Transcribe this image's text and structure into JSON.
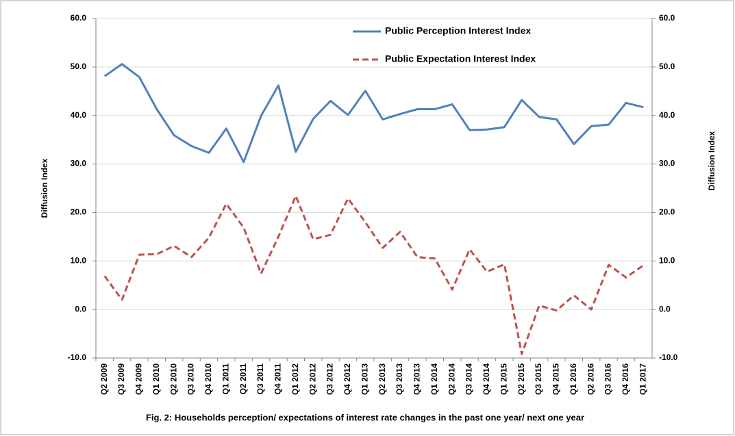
{
  "chart_data": {
    "type": "line",
    "title": "Fig. 2:  Households  perception/ expectations of interest rate changes in the past one year/ next one year",
    "ylabel": "Diffusion Index",
    "y2label": "Diffusion Index",
    "categories": [
      "Q2 2009",
      "Q3 2009",
      "Q4 2009",
      "Q1 2010",
      "Q2 2010",
      "Q3 2010",
      "Q4 2010",
      "Q1 2011",
      "Q2 2011",
      "Q3 2011",
      "Q4 2011",
      "Q1 2012",
      "Q2 2012",
      "Q3 2012",
      "Q4 2012",
      "Q1 2013",
      "Q2 2013",
      "Q3 2013",
      "Q4 2013",
      "Q1 2014",
      "Q2 2014",
      "Q3 2014",
      "Q4 2014",
      "Q1 2015",
      "Q2 2015",
      "Q3 2015",
      "Q4 2015",
      "Q1 2016",
      "Q2 2016",
      "Q3 2016",
      "Q4 2016",
      "Q1 2017"
    ],
    "series": [
      {
        "name": "Public Perception Interest Index",
        "color": "#4f81bd",
        "dash": false,
        "values": [
          48.1,
          50.6,
          47.9,
          41.3,
          35.9,
          33.7,
          32.3,
          37.3,
          30.4,
          39.9,
          46.2,
          32.5,
          39.3,
          43.0,
          40.1,
          45.1,
          39.2,
          40.3,
          41.3,
          41.3,
          42.3,
          37.0,
          37.1,
          37.6,
          43.2,
          39.7,
          39.2,
          34.1,
          37.8,
          38.1,
          42.6,
          41.7
        ]
      },
      {
        "name": "Public Expectation Interest Index",
        "color": "#c0504d",
        "dash": true,
        "values": [
          6.9,
          2.0,
          11.3,
          11.4,
          13.1,
          10.8,
          14.8,
          21.8,
          16.9,
          7.4,
          15.0,
          23.4,
          14.5,
          15.4,
          22.9,
          18.0,
          12.7,
          16.0,
          10.8,
          10.5,
          4.1,
          12.4,
          7.8,
          9.3,
          -9.2,
          0.8,
          -0.2,
          2.9,
          0.0,
          9.2,
          6.6,
          9.1
        ]
      }
    ],
    "ylim": [
      -10,
      60
    ],
    "yticks": [
      {
        "value": -10,
        "label": "-10.0"
      },
      {
        "value": 0,
        "label": "0.0"
      },
      {
        "value": 10,
        "label": "10.0"
      },
      {
        "value": 20,
        "label": "20.0"
      },
      {
        "value": 30,
        "label": "30.0"
      },
      {
        "value": 40,
        "label": "40.0"
      },
      {
        "value": 50,
        "label": "50.0"
      },
      {
        "value": 60,
        "label": "60.0"
      }
    ],
    "y2lim": [
      -10,
      60
    ],
    "y2ticks": [
      {
        "value": -10,
        "label": "-10.0"
      },
      {
        "value": 0,
        "label": "0.0"
      },
      {
        "value": 10,
        "label": "10.0"
      },
      {
        "value": 20,
        "label": "20.0"
      },
      {
        "value": 30,
        "label": "30.0"
      },
      {
        "value": 40,
        "label": "40.0"
      },
      {
        "value": 50,
        "label": "50.0"
      },
      {
        "value": 60,
        "label": "60.0"
      }
    ],
    "grid": true
  }
}
